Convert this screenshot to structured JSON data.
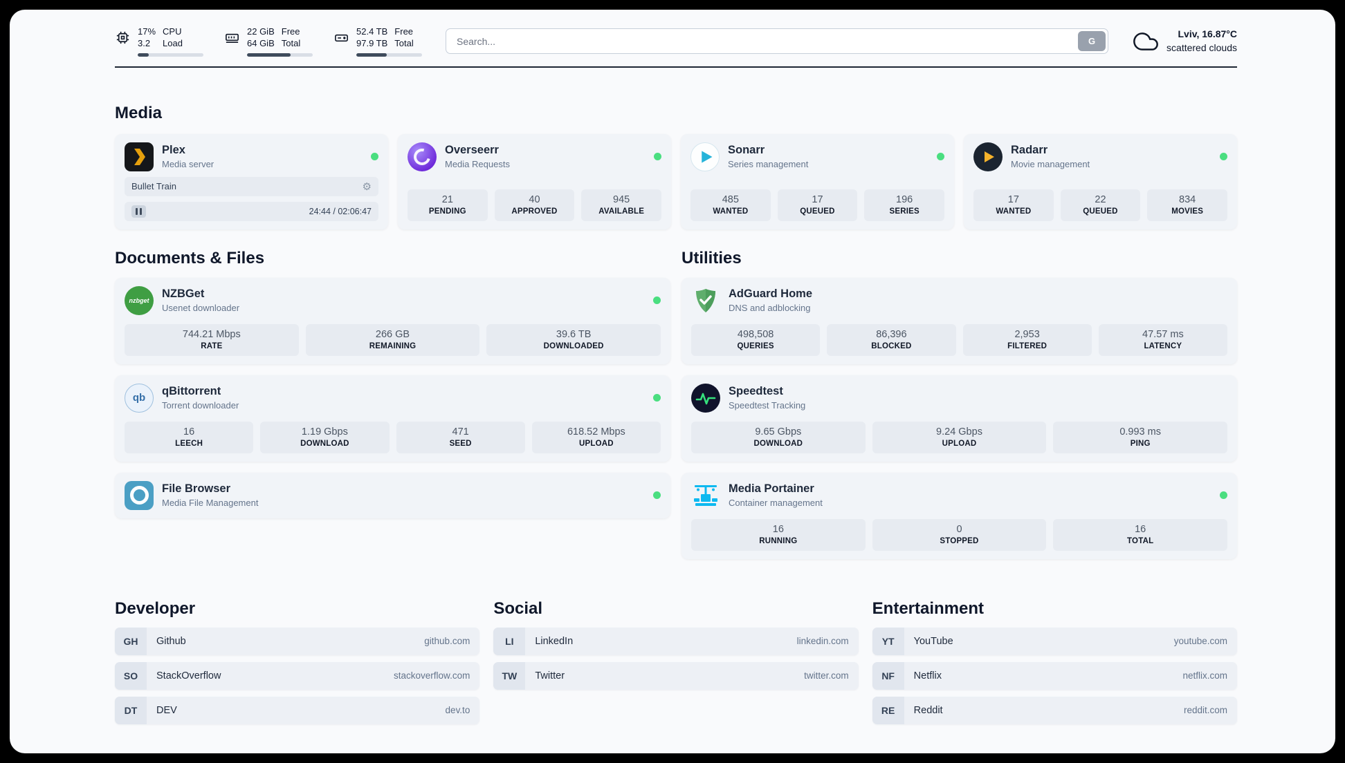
{
  "header": {
    "cpu": {
      "value1": "17%",
      "value2": "3.2",
      "label1": "CPU",
      "label2": "Load",
      "bar_percent": 17
    },
    "ram": {
      "value1": "22 GiB",
      "value2": "64 GiB",
      "label1": "Free",
      "label2": "Total",
      "bar_percent": 66
    },
    "disk": {
      "value1": "52.4 TB",
      "value2": "97.9 TB",
      "label1": "Free",
      "label2": "Total",
      "bar_percent": 46
    },
    "search": {
      "placeholder": "Search...",
      "button_label": "G"
    },
    "weather": {
      "location": "Lviv, 16.87°C",
      "condition": "scattered clouds"
    }
  },
  "media": {
    "title": "Media",
    "plex": {
      "name": "Plex",
      "subtitle": "Media server",
      "now_playing": "Bullet Train",
      "gear_glyph": "⚙",
      "time": "24:44 / 02:06:47"
    },
    "overseerr": {
      "name": "Overseerr",
      "subtitle": "Media Requests",
      "stats": [
        {
          "value": "21",
          "label": "PENDING"
        },
        {
          "value": "40",
          "label": "APPROVED"
        },
        {
          "value": "945",
          "label": "AVAILABLE"
        }
      ]
    },
    "sonarr": {
      "name": "Sonarr",
      "subtitle": "Series management",
      "stats": [
        {
          "value": "485",
          "label": "WANTED"
        },
        {
          "value": "17",
          "label": "QUEUED"
        },
        {
          "value": "196",
          "label": "SERIES"
        }
      ]
    },
    "radarr": {
      "name": "Radarr",
      "subtitle": "Movie management",
      "stats": [
        {
          "value": "17",
          "label": "WANTED"
        },
        {
          "value": "22",
          "label": "QUEUED"
        },
        {
          "value": "834",
          "label": "MOVIES"
        }
      ]
    }
  },
  "documents": {
    "title": "Documents & Files",
    "nzbget": {
      "name": "NZBGet",
      "subtitle": "Usenet downloader",
      "icon_text": "nzbget",
      "stats": [
        {
          "value": "744.21 Mbps",
          "label": "RATE"
        },
        {
          "value": "266 GB",
          "label": "REMAINING"
        },
        {
          "value": "39.6 TB",
          "label": "DOWNLOADED"
        }
      ]
    },
    "qbittorrent": {
      "name": "qBittorrent",
      "subtitle": "Torrent downloader",
      "icon_text": "qb",
      "stats": [
        {
          "value": "16",
          "label": "LEECH"
        },
        {
          "value": "1.19 Gbps",
          "label": "DOWNLOAD"
        },
        {
          "value": "471",
          "label": "SEED"
        },
        {
          "value": "618.52 Mbps",
          "label": "UPLOAD"
        }
      ]
    },
    "filebrowser": {
      "name": "File Browser",
      "subtitle": "Media File Management"
    }
  },
  "utilities": {
    "title": "Utilities",
    "adguard": {
      "name": "AdGuard Home",
      "subtitle": "DNS and adblocking",
      "stats": [
        {
          "value": "498,508",
          "label": "QUERIES"
        },
        {
          "value": "86,396",
          "label": "BLOCKED"
        },
        {
          "value": "2,953",
          "label": "FILTERED"
        },
        {
          "value": "47.57 ms",
          "label": "LATENCY"
        }
      ]
    },
    "speedtest": {
      "name": "Speedtest",
      "subtitle": "Speedtest Tracking",
      "stats": [
        {
          "value": "9.65 Gbps",
          "label": "DOWNLOAD"
        },
        {
          "value": "9.24 Gbps",
          "label": "UPLOAD"
        },
        {
          "value": "0.993 ms",
          "label": "PING"
        }
      ]
    },
    "portainer": {
      "name": "Media Portainer",
      "subtitle": "Container management",
      "stats": [
        {
          "value": "16",
          "label": "RUNNING"
        },
        {
          "value": "0",
          "label": "STOPPED"
        },
        {
          "value": "16",
          "label": "TOTAL"
        }
      ]
    }
  },
  "bookmarks": {
    "developer": {
      "title": "Developer",
      "items": [
        {
          "abbr": "GH",
          "name": "Github",
          "url": "github.com"
        },
        {
          "abbr": "SO",
          "name": "StackOverflow",
          "url": "stackoverflow.com"
        },
        {
          "abbr": "DT",
          "name": "DEV",
          "url": "dev.to"
        }
      ]
    },
    "social": {
      "title": "Social",
      "items": [
        {
          "abbr": "LI",
          "name": "LinkedIn",
          "url": "linkedin.com"
        },
        {
          "abbr": "TW",
          "name": "Twitter",
          "url": "twitter.com"
        }
      ]
    },
    "entertainment": {
      "title": "Entertainment",
      "items": [
        {
          "abbr": "YT",
          "name": "YouTube",
          "url": "youtube.com"
        },
        {
          "abbr": "NF",
          "name": "Netflix",
          "url": "netflix.com"
        },
        {
          "abbr": "RE",
          "name": "Reddit",
          "url": "reddit.com"
        }
      ]
    }
  }
}
